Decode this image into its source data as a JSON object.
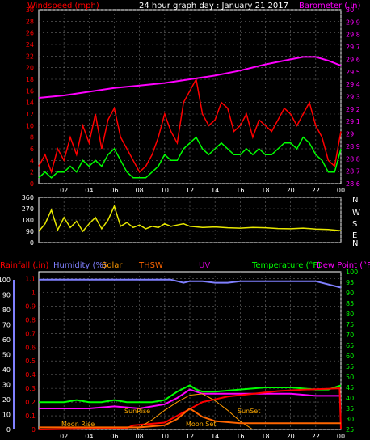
{
  "colors": {
    "windspeed": "#ff0000",
    "gust_line": "#00ff00",
    "barometer": "#ff00ff",
    "direction": "#e8e800",
    "rainfall": "#ff0000",
    "humidity": "#8080ff",
    "solar": "#ff9900",
    "thsw": "#ff6600",
    "uv": "#cc00cc",
    "temperature": "#00ff00",
    "dew_point": "#ff00ff",
    "grid": "#6a6a6a",
    "axis": "#ffffff"
  },
  "chart_data": [
    {
      "type": "line",
      "title": "24 hour graph day : January 21 2017",
      "left_label": "Windspeed (mph)",
      "right_label": "Barometer (.in)",
      "x_ticks": [
        "02",
        "04",
        "06",
        "08",
        "10",
        "12",
        "14",
        "16",
        "18",
        "20",
        "22",
        "00"
      ],
      "y_left_ticks": [
        "0",
        "2",
        "4",
        "6",
        "8",
        "10",
        "12",
        "14",
        "16",
        "18",
        "20",
        "22",
        "24",
        "26",
        "28",
        "30"
      ],
      "y_right_ticks": [
        "28.6",
        "28.7",
        "28.8",
        "28.9",
        "29",
        "29.1",
        "29.2",
        "29.3",
        "29.4",
        "29.5",
        "29.6",
        "29.7",
        "29.8",
        "29.9",
        "30"
      ],
      "ylim_left": [
        0,
        30
      ],
      "ylim_right": [
        28.6,
        30.0
      ],
      "grid": true,
      "series": [
        {
          "key": "windspeed",
          "hours": [
            0,
            0.5,
            1,
            1.5,
            2,
            2.5,
            3,
            3.5,
            4,
            4.5,
            5,
            5.5,
            6,
            6.5,
            7,
            7.5,
            8,
            8.5,
            9,
            9.5,
            10,
            10.5,
            11,
            11.5,
            12,
            12.5,
            13,
            13.5,
            14,
            14.5,
            15,
            15.5,
            16,
            16.5,
            17,
            17.5,
            18,
            18.5,
            19,
            19.5,
            20,
            20.5,
            21,
            21.5,
            22,
            22.5,
            23,
            23.5,
            24
          ],
          "values": [
            3,
            5,
            2,
            6,
            4,
            8,
            5,
            10,
            7,
            12,
            6,
            11,
            13,
            8,
            6,
            4,
            2,
            3,
            5,
            8,
            12,
            9,
            7,
            14,
            16,
            18,
            12,
            10,
            11,
            14,
            13,
            9,
            10,
            12,
            8,
            11,
            10,
            9,
            11,
            13,
            12,
            10,
            12,
            14,
            10,
            8,
            4,
            3,
            9
          ]
        },
        {
          "key": "gust_line",
          "hours": [
            0,
            0.5,
            1,
            1.5,
            2,
            2.5,
            3,
            3.5,
            4,
            4.5,
            5,
            5.5,
            6,
            6.5,
            7,
            7.5,
            8,
            8.5,
            9,
            9.5,
            10,
            10.5,
            11,
            11.5,
            12,
            12.5,
            13,
            13.5,
            14,
            14.5,
            15,
            15.5,
            16,
            16.5,
            17,
            17.5,
            18,
            18.5,
            19,
            19.5,
            20,
            20.5,
            21,
            21.5,
            22,
            22.5,
            23,
            23.5,
            24
          ],
          "values": [
            1,
            2,
            1,
            2,
            2,
            3,
            2,
            4,
            3,
            4,
            3,
            5,
            6,
            4,
            2,
            1,
            1,
            1,
            2,
            3,
            5,
            4,
            4,
            6,
            7,
            8,
            6,
            5,
            6,
            7,
            6,
            5,
            5,
            6,
            5,
            6,
            5,
            5,
            6,
            7,
            7,
            6,
            8,
            7,
            5,
            4,
            2,
            2,
            6
          ]
        },
        {
          "key": "barometer",
          "hours": [
            0,
            2,
            4,
            6,
            8,
            10,
            12,
            14,
            16,
            18,
            20,
            21,
            22,
            23,
            24
          ],
          "values": [
            29.29,
            29.31,
            29.34,
            29.37,
            29.39,
            29.41,
            29.44,
            29.47,
            29.51,
            29.56,
            29.6,
            29.62,
            29.62,
            29.59,
            29.55
          ]
        }
      ]
    },
    {
      "type": "line",
      "right_labels": [
        "N",
        "W",
        "S",
        "E",
        "N"
      ],
      "y_ticks": [
        "0",
        "90",
        "180",
        "270",
        "360"
      ],
      "ylim": [
        0,
        360
      ],
      "series": [
        {
          "key": "direction",
          "hours": [
            0,
            0.5,
            1,
            1.5,
            2,
            2.5,
            3,
            3.5,
            4,
            4.5,
            5,
            5.5,
            6,
            6.5,
            7,
            7.5,
            8,
            8.5,
            9,
            9.5,
            10,
            10.5,
            11,
            11.5,
            12,
            13,
            14,
            15,
            16,
            17,
            18,
            19,
            20,
            21,
            22,
            23,
            24
          ],
          "values": [
            90,
            150,
            260,
            100,
            200,
            120,
            170,
            90,
            150,
            200,
            110,
            180,
            290,
            130,
            160,
            120,
            140,
            110,
            130,
            120,
            150,
            130,
            140,
            150,
            130,
            120,
            125,
            118,
            115,
            120,
            118,
            112,
            110,
            115,
            108,
            105,
            95
          ]
        }
      ]
    },
    {
      "type": "line",
      "labels": {
        "rainfall": "Rainfall (.in)",
        "humidity": "Humidity (%)",
        "solar": "Solar",
        "thsw": "THSW",
        "uv": "UV",
        "temperature": "Temperature (°F)",
        "dew_point": "Dew Point (°F)"
      },
      "annotations": [
        "SunRise",
        "SunSet",
        "Moon Rise",
        "Moon Set"
      ],
      "x_ticks": [
        "02",
        "04",
        "06",
        "08",
        "10",
        "12",
        "14",
        "16",
        "18",
        "20",
        "22",
        "00"
      ],
      "y_left_ticks": [
        "0",
        "0.1",
        "0.2",
        "0.3",
        "0.4",
        "0.5",
        "0.6",
        "0.7",
        "0.8",
        "0.9",
        "1",
        "1.1"
      ],
      "y_left_outer_ticks": [
        "0",
        "10",
        "20",
        "30",
        "40",
        "50",
        "60",
        "70",
        "80",
        "90",
        "100"
      ],
      "y_right_ticks": [
        "25",
        "30",
        "35",
        "40",
        "45",
        "50",
        "55",
        "60",
        "65",
        "70",
        "75",
        "80",
        "85",
        "90",
        "95",
        "100"
      ],
      "ylim_rain": [
        0,
        1.15
      ],
      "ylim_temp": [
        25,
        100
      ],
      "grid": true,
      "series": [
        {
          "key": "humidity",
          "axis": "pct",
          "hours": [
            0,
            10.5,
            11,
            11.5,
            12,
            13,
            14,
            15,
            16,
            20,
            22,
            24
          ],
          "values": [
            95,
            95,
            94,
            93,
            94,
            94,
            93,
            93,
            94,
            94,
            94,
            90
          ]
        },
        {
          "key": "temperature",
          "axis": "temp",
          "hours": [
            0,
            2,
            3,
            4,
            5,
            6,
            7,
            8,
            9,
            10,
            11,
            12,
            12.5,
            13,
            14,
            16,
            18,
            20,
            22,
            23,
            24
          ],
          "values": [
            38,
            38,
            39,
            38,
            38,
            39,
            38,
            38,
            38,
            39,
            43,
            46,
            44,
            43,
            43,
            44,
            45,
            45,
            44,
            44,
            46
          ]
        },
        {
          "key": "dew_point",
          "axis": "temp",
          "hours": [
            0,
            2,
            4,
            6,
            8,
            10,
            11,
            12,
            13,
            14,
            16,
            18,
            20,
            22,
            24
          ],
          "values": [
            35,
            35,
            35,
            36,
            35,
            37,
            40,
            44,
            42,
            42,
            42,
            42,
            42,
            41,
            41
          ]
        },
        {
          "key": "rainfall",
          "axis": "rain",
          "hours": [
            0,
            7,
            7.5,
            10,
            11,
            12,
            13,
            15,
            17,
            19,
            21,
            23.9,
            24
          ],
          "values": [
            0,
            0.01,
            0.03,
            0.05,
            0.1,
            0.15,
            0.2,
            0.24,
            0.26,
            0.28,
            0.29,
            0.3,
            0
          ]
        },
        {
          "key": "solar",
          "axis": "rain",
          "hours": [
            7.7,
            9,
            10,
            11,
            12,
            13,
            14,
            15,
            16,
            17
          ],
          "values": [
            0,
            0.07,
            0.14,
            0.2,
            0.25,
            0.26,
            0.21,
            0.14,
            0.06,
            0
          ]
        },
        {
          "key": "thsw",
          "axis": "temp",
          "hours": [
            0,
            8,
            10,
            11,
            12,
            13,
            14,
            16,
            20,
            24
          ],
          "values": [
            26,
            26,
            27,
            30,
            35,
            31,
            29,
            28,
            28,
            28
          ]
        }
      ]
    }
  ]
}
